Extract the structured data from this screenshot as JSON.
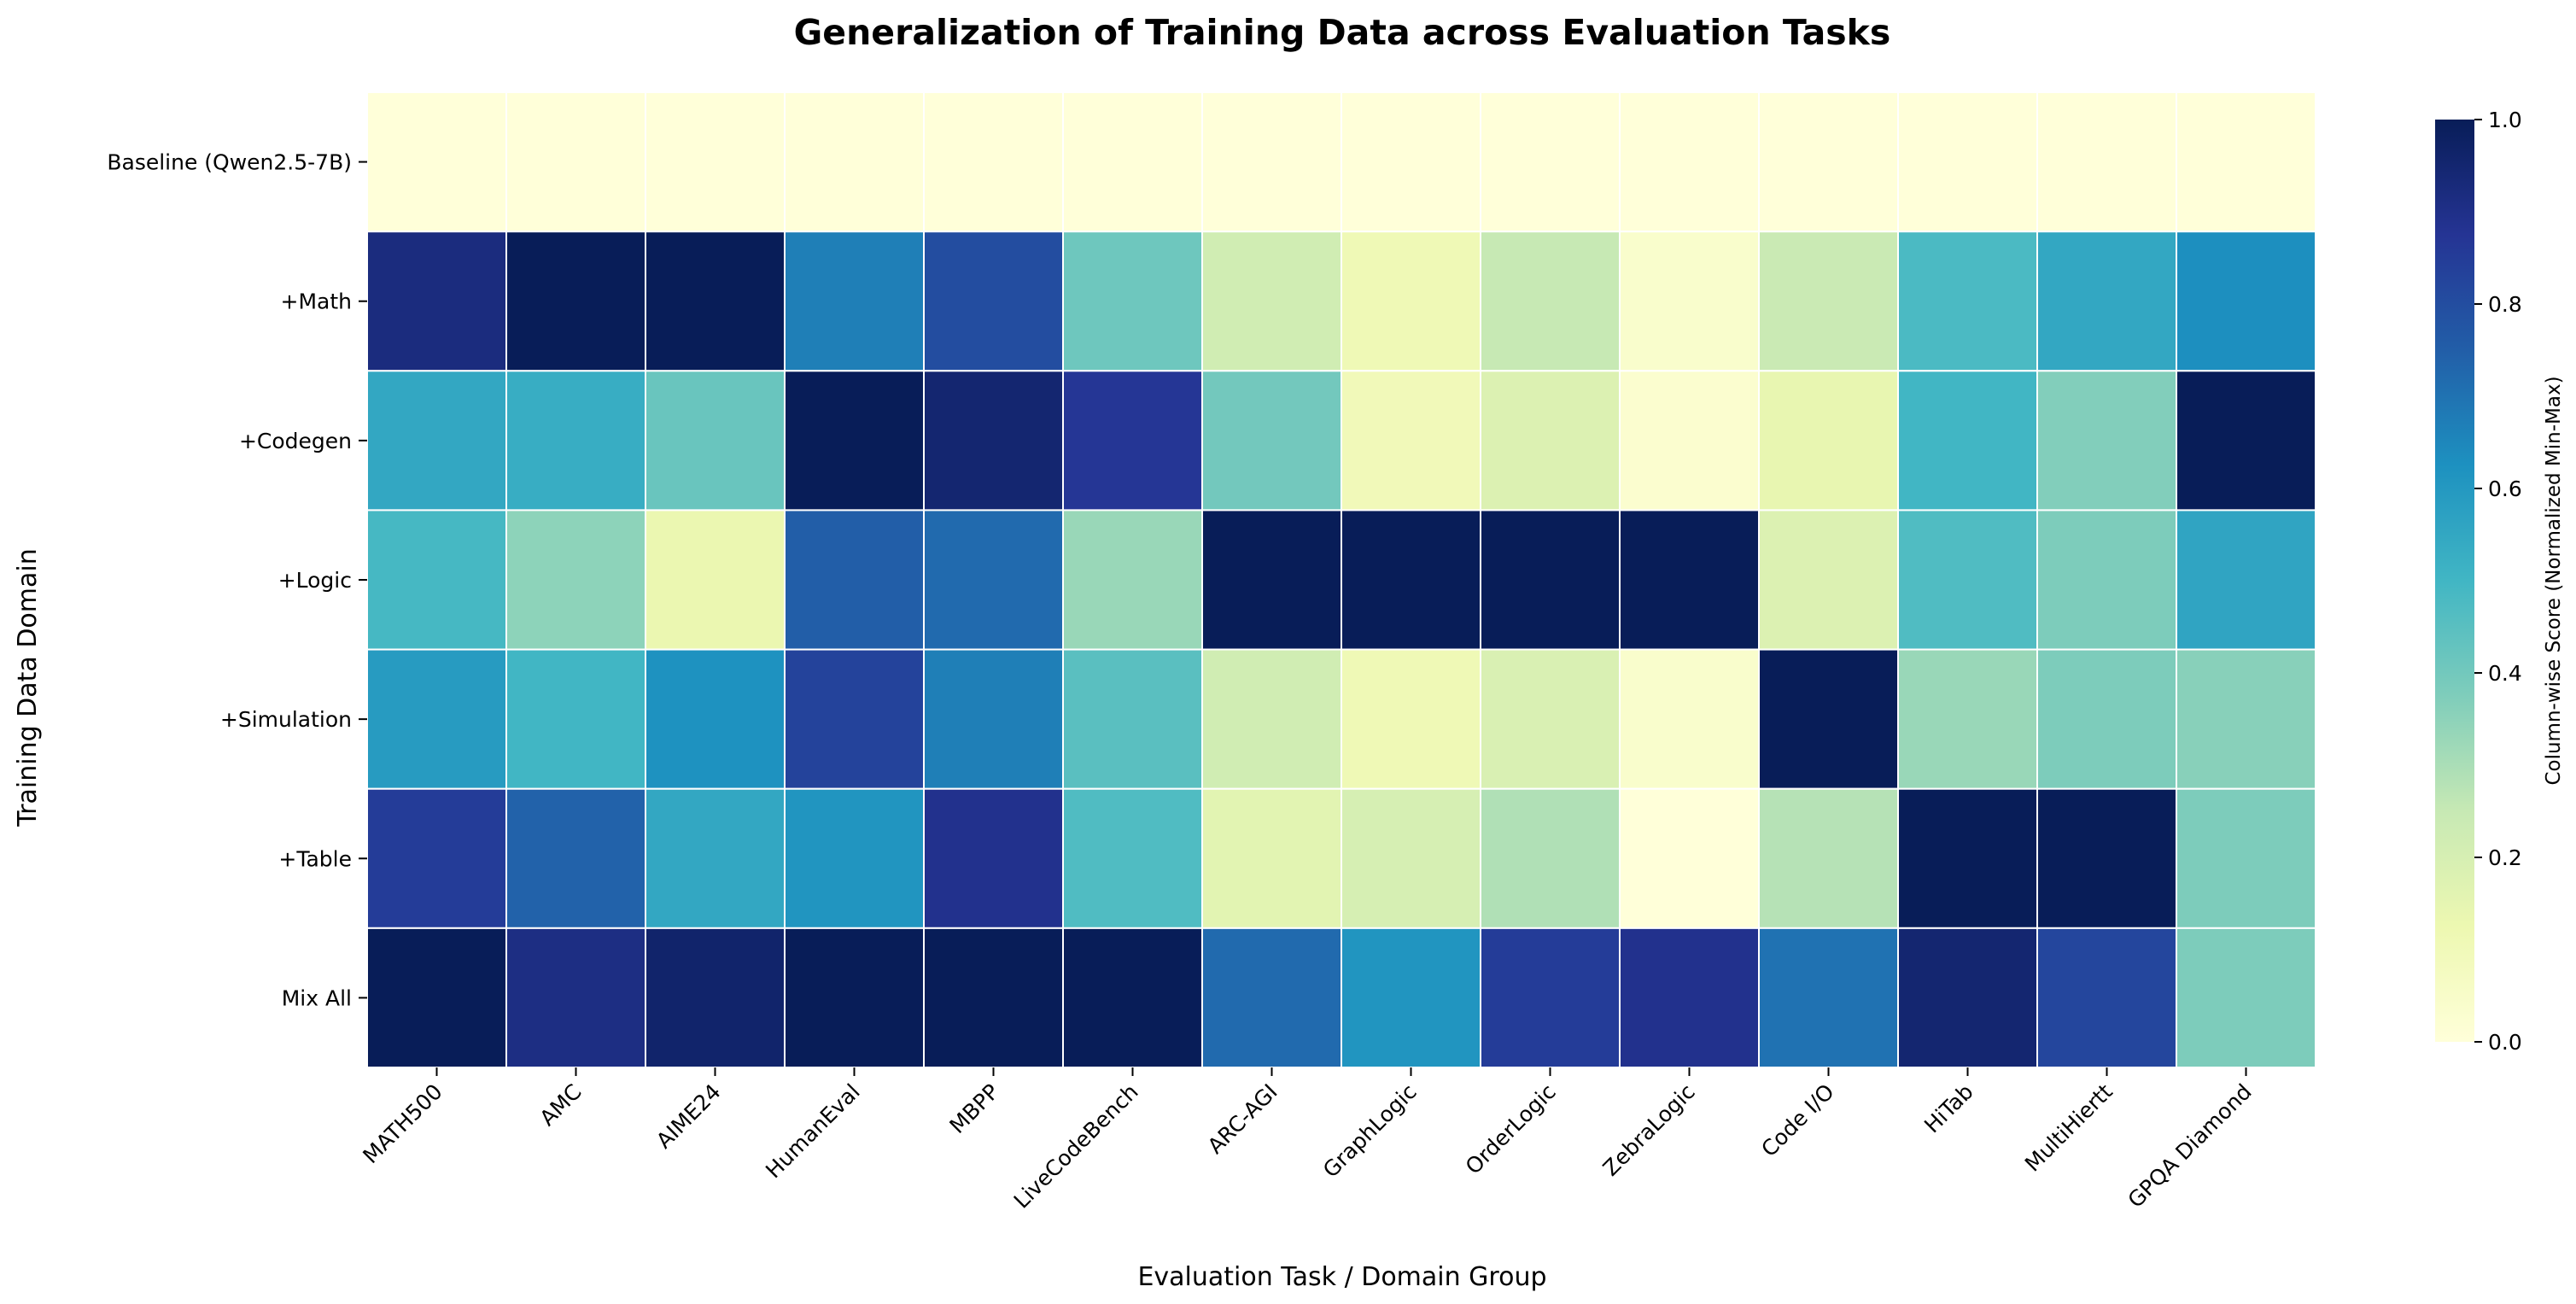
{
  "chart_data": {
    "type": "heatmap",
    "title": "Generalization of Training Data across Evaluation Tasks",
    "xlabel": "Evaluation Task / Domain Group",
    "ylabel": "Training Data Domain",
    "colorbar_label": "Column-wise Score (Normalized Min-Max)",
    "colorbar_ticks": [
      "0.0",
      "0.2",
      "0.4",
      "0.6",
      "0.8",
      "1.0"
    ],
    "value_range": [
      0,
      1
    ],
    "colormap": "YlGnBu",
    "colormap_stops": [
      "#ffffd9",
      "#edf8b1",
      "#c7e9b4",
      "#7fcdbb",
      "#41b6c4",
      "#1d91c0",
      "#225ea8",
      "#253494",
      "#081d58"
    ],
    "columns": [
      "MATH500",
      "AMC",
      "AIME24",
      "HumanEval",
      "MBPP",
      "LiveCodeBench",
      "ARC-AGI",
      "GraphLogic",
      "OrderLogic",
      "ZebraLogic",
      "Code I/O",
      "HiTab",
      "MultiHiertt",
      "GPQA Diamond"
    ],
    "rows": [
      "Baseline (Qwen2.5-7B)",
      "+Math",
      "+Codegen",
      "+Logic",
      "+Simulation",
      "+Table",
      "Mix All"
    ],
    "values": [
      [
        0.0,
        0.0,
        0.0,
        0.0,
        0.0,
        0.0,
        0.0,
        0.0,
        0.0,
        0.0,
        0.0,
        0.0,
        0.0,
        0.0
      ],
      [
        0.92,
        1.0,
        1.0,
        0.67,
        0.8,
        0.41,
        0.22,
        0.11,
        0.25,
        0.04,
        0.24,
        0.48,
        0.55,
        0.63
      ],
      [
        0.55,
        0.53,
        0.42,
        1.0,
        0.95,
        0.87,
        0.4,
        0.1,
        0.18,
        0.03,
        0.14,
        0.5,
        0.37,
        1.0
      ],
      [
        0.49,
        0.35,
        0.13,
        0.75,
        0.72,
        0.33,
        1.0,
        1.0,
        1.0,
        1.0,
        0.18,
        0.47,
        0.38,
        0.56
      ],
      [
        0.59,
        0.5,
        0.62,
        0.83,
        0.67,
        0.45,
        0.22,
        0.11,
        0.19,
        0.04,
        1.0,
        0.33,
        0.38,
        0.36
      ],
      [
        0.85,
        0.74,
        0.55,
        0.61,
        0.89,
        0.47,
        0.16,
        0.2,
        0.29,
        0.0,
        0.28,
        1.0,
        1.0,
        0.38
      ],
      [
        1.0,
        0.91,
        0.96,
        1.0,
        1.0,
        1.0,
        0.72,
        0.61,
        0.85,
        0.89,
        0.7,
        0.95,
        0.82,
        0.38
      ]
    ]
  }
}
